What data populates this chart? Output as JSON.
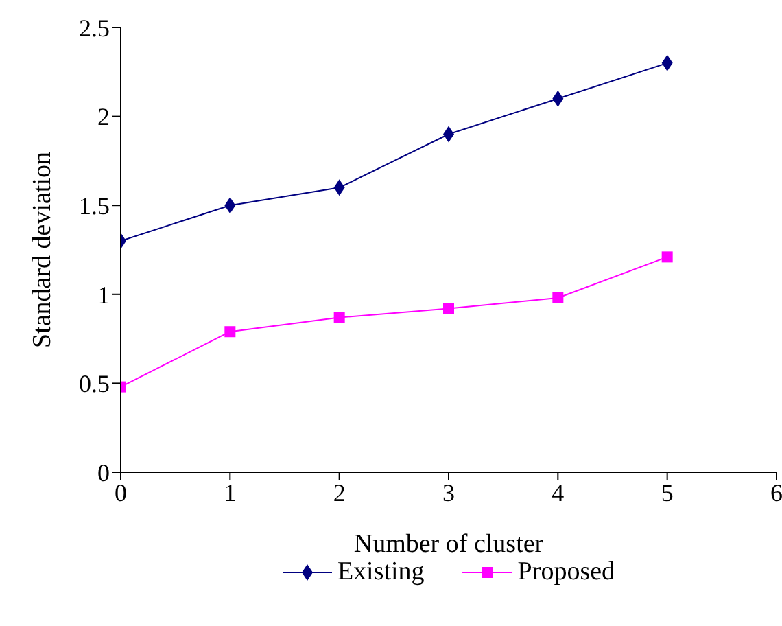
{
  "chart_data": {
    "type": "line",
    "xlabel": "Number of cluster",
    "ylabel": "Standard deviation",
    "x": [
      0,
      1,
      2,
      3,
      4,
      5
    ],
    "series": [
      {
        "name": "Existing",
        "color": "#000080",
        "marker": "diamond",
        "values": [
          1.3,
          1.5,
          1.6,
          1.9,
          2.1,
          2.3
        ]
      },
      {
        "name": "Proposed",
        "color": "#ff00ff",
        "marker": "square",
        "values": [
          0.48,
          0.79,
          0.87,
          0.92,
          0.98,
          1.21
        ]
      }
    ],
    "xlim": [
      0,
      6
    ],
    "xticks": [
      0,
      1,
      2,
      3,
      4,
      5,
      6
    ],
    "ylim": [
      0,
      2.5
    ],
    "yticks": [
      0,
      0.5,
      1,
      1.5,
      2,
      2.5
    ],
    "grid": false,
    "legend": "bottom"
  }
}
